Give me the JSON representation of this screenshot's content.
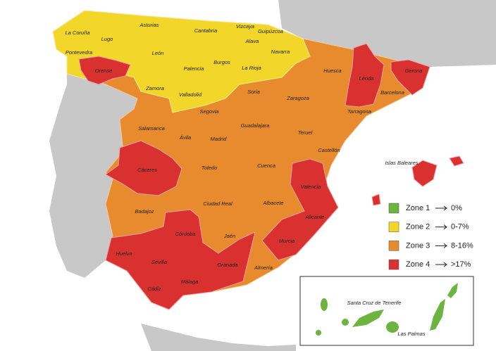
{
  "provinces": [
    {
      "name": "La Coruña"
    },
    {
      "name": "Lugo"
    },
    {
      "name": "Asturias"
    },
    {
      "name": "Cantabria"
    },
    {
      "name": "Vizcaya"
    },
    {
      "name": "Guipúzcoa"
    },
    {
      "name": "Alava"
    },
    {
      "name": "Navarra"
    },
    {
      "name": "Pontevedra"
    },
    {
      "name": "León"
    },
    {
      "name": "Palencia"
    },
    {
      "name": "Burgos"
    },
    {
      "name": "La Rioja"
    },
    {
      "name": "Orense"
    },
    {
      "name": "Huesca"
    },
    {
      "name": "Lérida"
    },
    {
      "name": "Gerona"
    },
    {
      "name": "Zamora"
    },
    {
      "name": "Valladolid"
    },
    {
      "name": "Soria"
    },
    {
      "name": "Zaragoza"
    },
    {
      "name": "Barcelona"
    },
    {
      "name": "Tarragona"
    },
    {
      "name": "Segovia"
    },
    {
      "name": "Salamanca"
    },
    {
      "name": "Guadalajara"
    },
    {
      "name": "Ávila"
    },
    {
      "name": "Madrid"
    },
    {
      "name": "Teruel"
    },
    {
      "name": "Castellón"
    },
    {
      "name": "Toledo"
    },
    {
      "name": "Cuenca"
    },
    {
      "name": "Cáceres"
    },
    {
      "name": "Valencia"
    },
    {
      "name": "Islas Baleares"
    },
    {
      "name": "Badajoz"
    },
    {
      "name": "Ciudad Real"
    },
    {
      "name": "Albacete"
    },
    {
      "name": "Alicante"
    },
    {
      "name": "Córdoba"
    },
    {
      "name": "Jaén"
    },
    {
      "name": "Murcia"
    },
    {
      "name": "Huelva"
    },
    {
      "name": "Sevilla"
    },
    {
      "name": "Granada"
    },
    {
      "name": "Almería"
    },
    {
      "name": "Cádiz"
    },
    {
      "name": "Málaga"
    },
    {
      "name": "Santa Cruz de Tenerife"
    },
    {
      "name": "Las Palmas"
    }
  ],
  "legend": [
    {
      "label": "Zone 1",
      "range": "0%",
      "color": "#6db33f"
    },
    {
      "label": "Zone 2",
      "range": "0-7%",
      "color": "#f2d629"
    },
    {
      "label": "Zone 3",
      "range": "8-16%",
      "color": "#e88a2e"
    },
    {
      "label": "Zone 4",
      "range": ">17%",
      "color": "#d93030"
    }
  ]
}
